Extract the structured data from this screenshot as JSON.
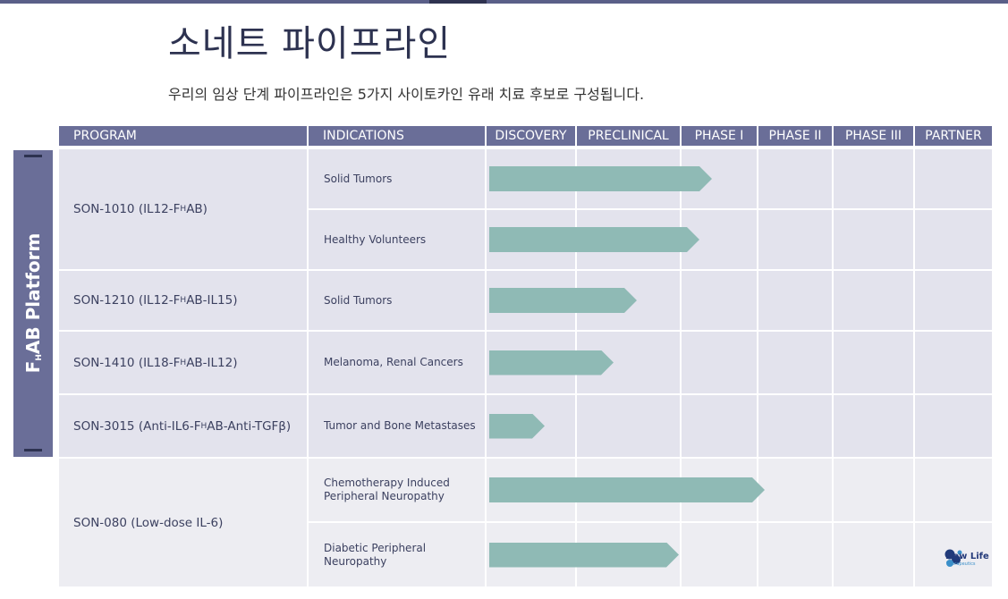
{
  "page": {
    "title": "소네트 파이프라인",
    "subtitle": "우리의 임상 단계 파이프라인은 5가지 사이토카인 유래 치료 후보로 구성됩니다."
  },
  "platform": {
    "label_pre": "F",
    "label_sub": "H",
    "label_post": "AB Platform"
  },
  "table": {
    "headers": [
      "PROGRAM",
      "INDICATIONS",
      "DISCOVERY",
      "PRECLINICAL",
      "PHASE I",
      "PHASE II",
      "PHASE III",
      "PARTNER"
    ],
    "programs": [
      {
        "pre": "SON-1010 (IL12-F",
        "sub": "H",
        "post": "AB)"
      },
      {
        "pre": "SON-1210 (IL12-F",
        "sub": "H",
        "post": "AB-IL15)"
      },
      {
        "pre": "SON-1410 (IL18-F",
        "sub": "H",
        "post": "AB-IL12)"
      },
      {
        "pre": "SON-3015 (Anti-IL6-F",
        "sub": "H",
        "post": "AB-Anti-TGFβ)"
      },
      {
        "text": "SON-080 (Low-dose IL-6)"
      }
    ],
    "indications": [
      {
        "line1": "Solid Tumors",
        "line2": "",
        "progress_fraction": 0.443
      },
      {
        "line1": "Healthy Volunteers",
        "line2": "",
        "progress_fraction": 0.418
      },
      {
        "line1": "Solid Tumors",
        "line2": "",
        "progress_fraction": 0.293
      },
      {
        "line1": "Melanoma, Renal Cancers",
        "line2": "",
        "progress_fraction": 0.248
      },
      {
        "line1": "Tumor and Bone Metastases",
        "line2": "",
        "progress_fraction": 0.111
      },
      {
        "line1": "Chemotherapy Induced",
        "line2": "Peripheral Neuropathy",
        "progress_fraction": 0.548
      },
      {
        "line1": "Diabetic Peripheral",
        "line2": "Neuropathy",
        "progress_fraction": 0.377
      }
    ]
  },
  "partner": {
    "name": "New Life",
    "tagline": "Therapeutics"
  },
  "colors": {
    "header": "#6a6e98",
    "bar": "#8fbab5",
    "title": "#2d3250"
  }
}
